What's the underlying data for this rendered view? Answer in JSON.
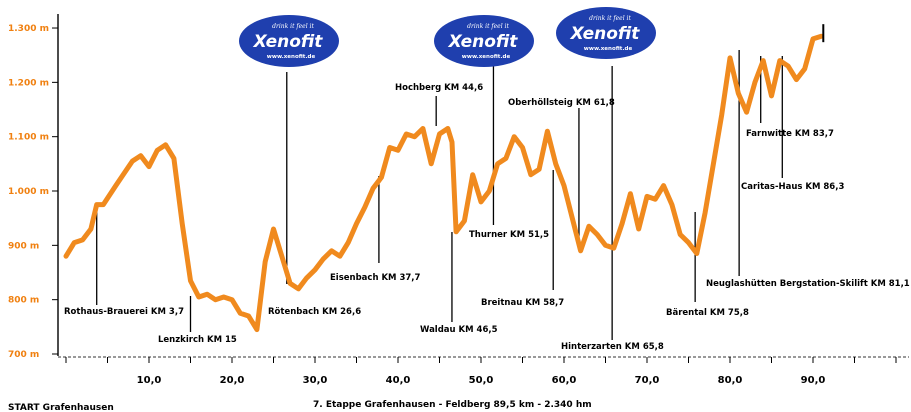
{
  "chart_data": {
    "type": "area",
    "title": "",
    "xlabel": "",
    "ylabel": "",
    "xlim": [
      -0.3,
      101
    ],
    "ylim": [
      700,
      1300
    ],
    "grid": false,
    "x_ticks": [
      10,
      20,
      30,
      40,
      50,
      60,
      70,
      80,
      90
    ],
    "x_tick_labels": [
      "10,0",
      "20,0",
      "30,0",
      "40,0",
      "50,0",
      "60,0",
      "70,0",
      "80,0",
      "90,0"
    ],
    "y_ticks": [
      700,
      800,
      900,
      1000,
      1100,
      1200,
      1300
    ],
    "y_tick_labels": [
      "700 m",
      "800 m",
      "900 m",
      "1.000 m",
      "1.100 m",
      "1.200 m",
      "1.300 m"
    ],
    "line_color": "#f08a1e",
    "profile": [
      [
        0,
        880
      ],
      [
        1,
        905
      ],
      [
        2,
        910
      ],
      [
        3,
        930
      ],
      [
        3.7,
        975
      ],
      [
        4.5,
        975
      ],
      [
        6,
        1010
      ],
      [
        8,
        1055
      ],
      [
        9,
        1065
      ],
      [
        10,
        1045
      ],
      [
        11,
        1075
      ],
      [
        12,
        1085
      ],
      [
        13,
        1060
      ],
      [
        14,
        940
      ],
      [
        15,
        835
      ],
      [
        16,
        805
      ],
      [
        17,
        810
      ],
      [
        18,
        800
      ],
      [
        19,
        805
      ],
      [
        20,
        800
      ],
      [
        21,
        775
      ],
      [
        22,
        770
      ],
      [
        23,
        745
      ],
      [
        24,
        870
      ],
      [
        25,
        930
      ],
      [
        26,
        880
      ],
      [
        27,
        830
      ],
      [
        28,
        820
      ],
      [
        29,
        840
      ],
      [
        30,
        855
      ],
      [
        31,
        875
      ],
      [
        32,
        890
      ],
      [
        33,
        880
      ],
      [
        34,
        905
      ],
      [
        35,
        940
      ],
      [
        36,
        970
      ],
      [
        37,
        1005
      ],
      [
        38,
        1025
      ],
      [
        39,
        1080
      ],
      [
        40,
        1075
      ],
      [
        41,
        1105
      ],
      [
        42,
        1100
      ],
      [
        43,
        1115
      ],
      [
        44,
        1050
      ],
      [
        45,
        1105
      ],
      [
        46,
        1115
      ],
      [
        46.5,
        1090
      ],
      [
        47,
        925
      ],
      [
        48,
        945
      ],
      [
        49,
        1030
      ],
      [
        50,
        980
      ],
      [
        51,
        1000
      ],
      [
        52,
        1050
      ],
      [
        53,
        1060
      ],
      [
        54,
        1100
      ],
      [
        55,
        1080
      ],
      [
        56,
        1030
      ],
      [
        57,
        1040
      ],
      [
        58,
        1110
      ],
      [
        59,
        1050
      ],
      [
        60,
        1010
      ],
      [
        61,
        950
      ],
      [
        62,
        890
      ],
      [
        63,
        935
      ],
      [
        64,
        920
      ],
      [
        65,
        900
      ],
      [
        66,
        895
      ],
      [
        67,
        940
      ],
      [
        68,
        995
      ],
      [
        69,
        930
      ],
      [
        70,
        990
      ],
      [
        71,
        985
      ],
      [
        72,
        1010
      ],
      [
        73,
        975
      ],
      [
        74,
        920
      ],
      [
        75,
        905
      ],
      [
        76,
        885
      ],
      [
        77,
        960
      ],
      [
        78,
        1050
      ],
      [
        79,
        1140
      ],
      [
        80,
        1245
      ],
      [
        81,
        1180
      ],
      [
        82,
        1145
      ],
      [
        83,
        1200
      ],
      [
        84,
        1240
      ],
      [
        85,
        1175
      ],
      [
        86,
        1240
      ],
      [
        87,
        1230
      ],
      [
        88,
        1205
      ],
      [
        89,
        1225
      ],
      [
        90,
        1280
      ],
      [
        91,
        1285
      ]
    ],
    "waypoints": [
      {
        "label": "Rothaus-Brauerei KM 3,7",
        "km": 3.7
      },
      {
        "label": "Lenzkirch KM 15",
        "km": 15
      },
      {
        "label": "Rötenbach KM 26,6",
        "km": 26.6
      },
      {
        "label": "Eisenbach KM 37,7",
        "km": 37.7
      },
      {
        "label": "Hochberg KM 44,6",
        "km": 44.6
      },
      {
        "label": "Waldau KM 46,5",
        "km": 46.5
      },
      {
        "label": "Thurner KM 51,5",
        "km": 51.5
      },
      {
        "label": "Breitnau KM 58,7",
        "km": 58.7
      },
      {
        "label": "Oberhöllsteig KM 61,8",
        "km": 61.8
      },
      {
        "label": "Hinterzarten KM 65,8",
        "km": 65.8
      },
      {
        "label": "Bärental KM 75,8",
        "km": 75.8
      },
      {
        "label": "Neuglashütten Bergstation-Skilift KM 81,1",
        "km": 81.1
      },
      {
        "label": "Farnwitte KM 83,7",
        "km": 83.7
      },
      {
        "label": "Caritas-Haus KM 86,3",
        "km": 86.3
      }
    ],
    "sponsor_logos": [
      {
        "name": "Xenofit",
        "tagline": "drink it  feel it",
        "url": "www.xenofit.de"
      },
      {
        "name": "Xenofit",
        "tagline": "drink it  feel it",
        "url": "www.xenofit.de"
      },
      {
        "name": "Xenofit",
        "tagline": "drink it  feel it",
        "url": "www.xenofit.de"
      }
    ],
    "logo_color": "#1f3fae",
    "footer_left": "START Grafenhausen",
    "footer_center": "7. Etappe Grafenhausen - Feldberg 89,5 km - 2.340 hm"
  }
}
